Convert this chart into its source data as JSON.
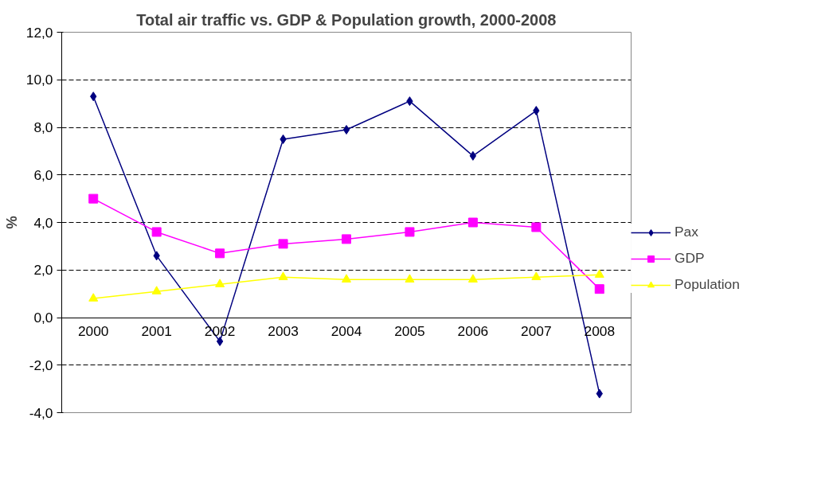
{
  "chart_data": {
    "type": "line",
    "title": "Total air traffic vs. GDP & Population growth, 2000-2008",
    "ylabel": "%",
    "categories": [
      "2000",
      "2001",
      "2002",
      "2003",
      "2004",
      "2005",
      "2006",
      "2007",
      "2008"
    ],
    "series": [
      {
        "name": "Pax",
        "color": "#000080",
        "marker": "diamond",
        "values": [
          9.3,
          2.6,
          -1.0,
          7.5,
          7.9,
          9.1,
          6.8,
          8.7,
          -3.2
        ]
      },
      {
        "name": "GDP",
        "color": "#ff00ff",
        "marker": "square",
        "values": [
          5.0,
          3.6,
          2.7,
          3.1,
          3.3,
          3.6,
          4.0,
          3.8,
          1.2
        ]
      },
      {
        "name": "Population",
        "color": "#ffff00",
        "marker": "triangle",
        "values": [
          0.8,
          1.1,
          1.4,
          1.7,
          1.6,
          1.6,
          1.6,
          1.7,
          1.8
        ]
      }
    ],
    "ylim": [
      -4,
      12
    ],
    "yticks": [
      {
        "value": -4,
        "label": "-4,0"
      },
      {
        "value": -2,
        "label": "-2,0"
      },
      {
        "value": 0,
        "label": "0,0"
      },
      {
        "value": 2,
        "label": "2,0"
      },
      {
        "value": 4,
        "label": "4,0"
      },
      {
        "value": 6,
        "label": "6,0"
      },
      {
        "value": 8,
        "label": "8,0"
      },
      {
        "value": 10,
        "label": "10,0"
      },
      {
        "value": 12,
        "label": "12,0"
      }
    ],
    "grid": "y",
    "legend": "right",
    "line_style": "solid"
  }
}
